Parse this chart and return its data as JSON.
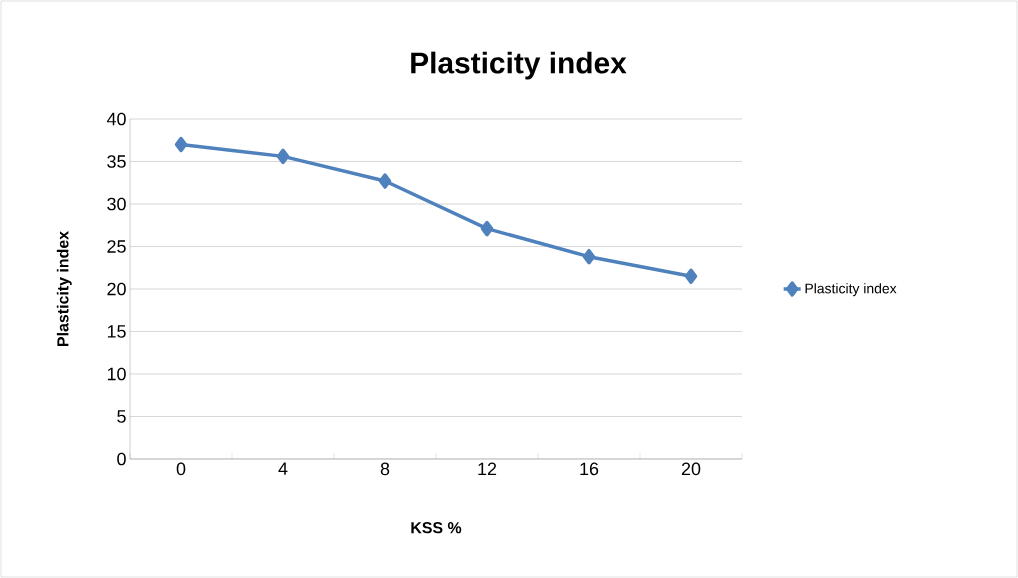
{
  "chart_data": {
    "type": "line",
    "title": "Plasticity index",
    "xlabel": "KSS %",
    "ylabel": "Plasticity index",
    "categories": [
      "0",
      "4",
      "8",
      "12",
      "16",
      "20"
    ],
    "series": [
      {
        "name": "Plasticity index",
        "color": "#4f81bd",
        "values": [
          37,
          35.6,
          32.7,
          27.1,
          23.8,
          21.5
        ]
      }
    ],
    "ylim": [
      0,
      40
    ],
    "yticks": [
      0,
      5,
      10,
      15,
      20,
      25,
      30,
      35,
      40
    ],
    "grid": "y",
    "legend": "right",
    "marker": "diamond",
    "line_style": "solid"
  }
}
